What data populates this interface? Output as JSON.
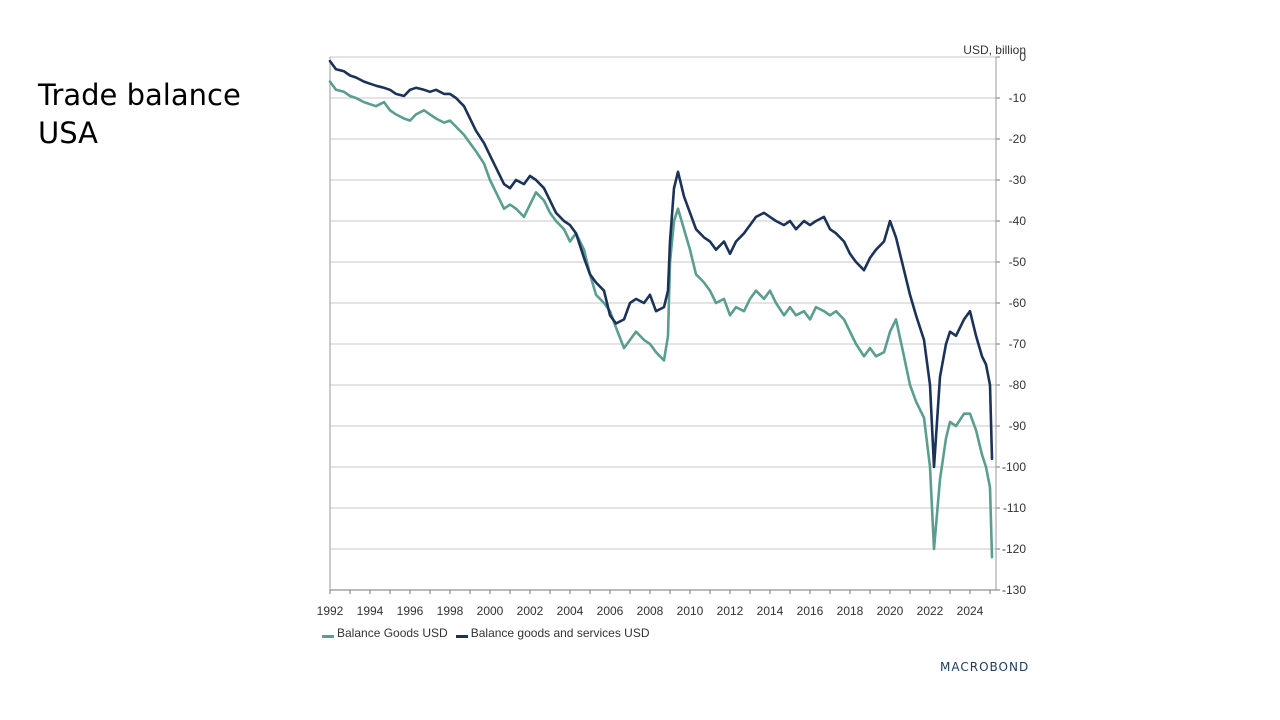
{
  "page": {
    "title_lines": [
      "Trade balance",
      "USA"
    ],
    "brand": "MACROBOND"
  },
  "chart_data": {
    "type": "line",
    "title": "Trade balance USA",
    "unit_label": "USD, billion",
    "x_axis": {
      "range": [
        1992.0,
        2025.3
      ],
      "ticks": [
        1992,
        1994,
        1996,
        1998,
        2000,
        2002,
        2004,
        2006,
        2008,
        2010,
        2012,
        2014,
        2016,
        2018,
        2020,
        2022,
        2024
      ]
    },
    "y_axis": {
      "position": "right",
      "range": [
        -130,
        0
      ],
      "ticks": [
        0,
        -10,
        -20,
        -30,
        -40,
        -50,
        -60,
        -70,
        -80,
        -90,
        -100,
        -110,
        -120,
        -130
      ]
    },
    "grid": true,
    "legend_position": "bottom-left",
    "colors": {
      "goods": "#5a9e8f",
      "goods_services": "#1b3358"
    },
    "series": [
      {
        "name": "Balance Goods USD",
        "color": "#5a9e8f",
        "points": [
          [
            1992.0,
            -6
          ],
          [
            1992.3,
            -8
          ],
          [
            1992.7,
            -8.5
          ],
          [
            1993.0,
            -9.5
          ],
          [
            1993.3,
            -10
          ],
          [
            1993.7,
            -11
          ],
          [
            1994.0,
            -11.5
          ],
          [
            1994.3,
            -12
          ],
          [
            1994.7,
            -11
          ],
          [
            1995.0,
            -13
          ],
          [
            1995.3,
            -14
          ],
          [
            1995.7,
            -15
          ],
          [
            1996.0,
            -15.5
          ],
          [
            1996.3,
            -14
          ],
          [
            1996.7,
            -13
          ],
          [
            1997.0,
            -14
          ],
          [
            1997.3,
            -15
          ],
          [
            1997.7,
            -16
          ],
          [
            1998.0,
            -15.5
          ],
          [
            1998.3,
            -17
          ],
          [
            1998.7,
            -19
          ],
          [
            1999.0,
            -21
          ],
          [
            1999.3,
            -23
          ],
          [
            1999.7,
            -26
          ],
          [
            2000.0,
            -30
          ],
          [
            2000.3,
            -33
          ],
          [
            2000.7,
            -37
          ],
          [
            2001.0,
            -36
          ],
          [
            2001.3,
            -37
          ],
          [
            2001.7,
            -39
          ],
          [
            2002.0,
            -36
          ],
          [
            2002.3,
            -33
          ],
          [
            2002.7,
            -35
          ],
          [
            2003.0,
            -38
          ],
          [
            2003.3,
            -40
          ],
          [
            2003.7,
            -42
          ],
          [
            2004.0,
            -45
          ],
          [
            2004.3,
            -43
          ],
          [
            2004.7,
            -47
          ],
          [
            2005.0,
            -53
          ],
          [
            2005.3,
            -58
          ],
          [
            2005.7,
            -60
          ],
          [
            2006.0,
            -62
          ],
          [
            2006.3,
            -66
          ],
          [
            2006.7,
            -71
          ],
          [
            2007.0,
            -69
          ],
          [
            2007.3,
            -67
          ],
          [
            2007.7,
            -69
          ],
          [
            2008.0,
            -70
          ],
          [
            2008.3,
            -72
          ],
          [
            2008.7,
            -74
          ],
          [
            2008.9,
            -68
          ],
          [
            2009.0,
            -50
          ],
          [
            2009.2,
            -40
          ],
          [
            2009.4,
            -37
          ],
          [
            2009.7,
            -42
          ],
          [
            2010.0,
            -47
          ],
          [
            2010.3,
            -53
          ],
          [
            2010.7,
            -55
          ],
          [
            2011.0,
            -57
          ],
          [
            2011.3,
            -60
          ],
          [
            2011.7,
            -59
          ],
          [
            2012.0,
            -63
          ],
          [
            2012.3,
            -61
          ],
          [
            2012.7,
            -62
          ],
          [
            2013.0,
            -59
          ],
          [
            2013.3,
            -57
          ],
          [
            2013.7,
            -59
          ],
          [
            2014.0,
            -57
          ],
          [
            2014.3,
            -60
          ],
          [
            2014.7,
            -63
          ],
          [
            2015.0,
            -61
          ],
          [
            2015.3,
            -63
          ],
          [
            2015.7,
            -62
          ],
          [
            2016.0,
            -64
          ],
          [
            2016.3,
            -61
          ],
          [
            2016.7,
            -62
          ],
          [
            2017.0,
            -63
          ],
          [
            2017.3,
            -62
          ],
          [
            2017.7,
            -64
          ],
          [
            2018.0,
            -67
          ],
          [
            2018.3,
            -70
          ],
          [
            2018.7,
            -73
          ],
          [
            2019.0,
            -71
          ],
          [
            2019.3,
            -73
          ],
          [
            2019.7,
            -72
          ],
          [
            2020.0,
            -67
          ],
          [
            2020.3,
            -64
          ],
          [
            2020.7,
            -73
          ],
          [
            2021.0,
            -80
          ],
          [
            2021.3,
            -84
          ],
          [
            2021.7,
            -88
          ],
          [
            2022.0,
            -100
          ],
          [
            2022.2,
            -120
          ],
          [
            2022.5,
            -103
          ],
          [
            2022.8,
            -93
          ],
          [
            2023.0,
            -89
          ],
          [
            2023.3,
            -90
          ],
          [
            2023.7,
            -87
          ],
          [
            2024.0,
            -87
          ],
          [
            2024.3,
            -91
          ],
          [
            2024.6,
            -97
          ],
          [
            2024.8,
            -100
          ],
          [
            2025.0,
            -105
          ],
          [
            2025.1,
            -122
          ]
        ]
      },
      {
        "name": "Balance goods and services USD",
        "color": "#1b3358",
        "points": [
          [
            1992.0,
            -1
          ],
          [
            1992.3,
            -3
          ],
          [
            1992.7,
            -3.5
          ],
          [
            1993.0,
            -4.5
          ],
          [
            1993.3,
            -5
          ],
          [
            1993.7,
            -6
          ],
          [
            1994.0,
            -6.5
          ],
          [
            1994.3,
            -7
          ],
          [
            1994.7,
            -7.5
          ],
          [
            1995.0,
            -8
          ],
          [
            1995.3,
            -9
          ],
          [
            1995.7,
            -9.5
          ],
          [
            1996.0,
            -8
          ],
          [
            1996.3,
            -7.5
          ],
          [
            1996.7,
            -8
          ],
          [
            1997.0,
            -8.5
          ],
          [
            1997.3,
            -8
          ],
          [
            1997.7,
            -9
          ],
          [
            1998.0,
            -9
          ],
          [
            1998.3,
            -10
          ],
          [
            1998.7,
            -12
          ],
          [
            1999.0,
            -15
          ],
          [
            1999.3,
            -18
          ],
          [
            1999.7,
            -21
          ],
          [
            2000.0,
            -24
          ],
          [
            2000.3,
            -27
          ],
          [
            2000.7,
            -31
          ],
          [
            2001.0,
            -32
          ],
          [
            2001.3,
            -30
          ],
          [
            2001.7,
            -31
          ],
          [
            2002.0,
            -29
          ],
          [
            2002.3,
            -30
          ],
          [
            2002.7,
            -32
          ],
          [
            2003.0,
            -35
          ],
          [
            2003.3,
            -38
          ],
          [
            2003.7,
            -40
          ],
          [
            2004.0,
            -41
          ],
          [
            2004.3,
            -43
          ],
          [
            2004.7,
            -49
          ],
          [
            2005.0,
            -53
          ],
          [
            2005.3,
            -55
          ],
          [
            2005.7,
            -57
          ],
          [
            2006.0,
            -63
          ],
          [
            2006.3,
            -65
          ],
          [
            2006.7,
            -64
          ],
          [
            2007.0,
            -60
          ],
          [
            2007.3,
            -59
          ],
          [
            2007.7,
            -60
          ],
          [
            2008.0,
            -58
          ],
          [
            2008.3,
            -62
          ],
          [
            2008.7,
            -61
          ],
          [
            2008.9,
            -57
          ],
          [
            2009.0,
            -45
          ],
          [
            2009.2,
            -32
          ],
          [
            2009.4,
            -28
          ],
          [
            2009.7,
            -34
          ],
          [
            2010.0,
            -38
          ],
          [
            2010.3,
            -42
          ],
          [
            2010.7,
            -44
          ],
          [
            2011.0,
            -45
          ],
          [
            2011.3,
            -47
          ],
          [
            2011.7,
            -45
          ],
          [
            2012.0,
            -48
          ],
          [
            2012.3,
            -45
          ],
          [
            2012.7,
            -43
          ],
          [
            2013.0,
            -41
          ],
          [
            2013.3,
            -39
          ],
          [
            2013.7,
            -38
          ],
          [
            2014.0,
            -39
          ],
          [
            2014.3,
            -40
          ],
          [
            2014.7,
            -41
          ],
          [
            2015.0,
            -40
          ],
          [
            2015.3,
            -42
          ],
          [
            2015.7,
            -40
          ],
          [
            2016.0,
            -41
          ],
          [
            2016.3,
            -40
          ],
          [
            2016.7,
            -39
          ],
          [
            2017.0,
            -42
          ],
          [
            2017.3,
            -43
          ],
          [
            2017.7,
            -45
          ],
          [
            2018.0,
            -48
          ],
          [
            2018.3,
            -50
          ],
          [
            2018.7,
            -52
          ],
          [
            2019.0,
            -49
          ],
          [
            2019.3,
            -47
          ],
          [
            2019.7,
            -45
          ],
          [
            2020.0,
            -40
          ],
          [
            2020.3,
            -44
          ],
          [
            2020.7,
            -52
          ],
          [
            2021.0,
            -58
          ],
          [
            2021.3,
            -63
          ],
          [
            2021.7,
            -69
          ],
          [
            2022.0,
            -80
          ],
          [
            2022.2,
            -100
          ],
          [
            2022.5,
            -78
          ],
          [
            2022.8,
            -70
          ],
          [
            2023.0,
            -67
          ],
          [
            2023.3,
            -68
          ],
          [
            2023.7,
            -64
          ],
          [
            2024.0,
            -62
          ],
          [
            2024.3,
            -68
          ],
          [
            2024.6,
            -73
          ],
          [
            2024.8,
            -75
          ],
          [
            2025.0,
            -80
          ],
          [
            2025.1,
            -98
          ]
        ]
      }
    ]
  }
}
